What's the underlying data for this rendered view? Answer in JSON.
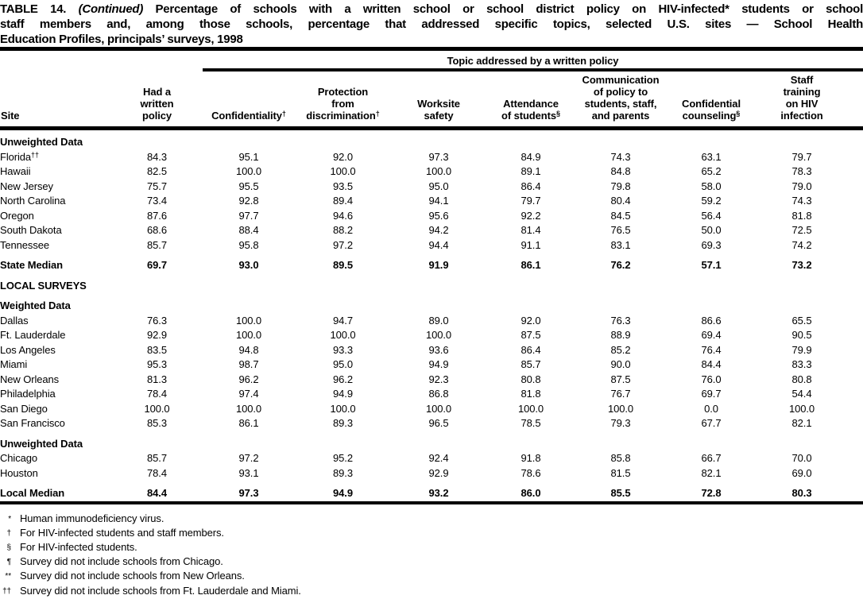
{
  "title": {
    "prefix": "TABLE 14.",
    "continued": "(Continued)",
    "line1_rest": "Percentage of schools with a written school or school district policy on HIV-infected* students or school",
    "line2": "staff members and, among those schools, percentage that addressed specific topics, selected U.S. sites — School Health",
    "line3": "Education Profiles, principals’ surveys, 1998"
  },
  "table": {
    "span_header": "Topic addressed by a written policy",
    "columns": [
      {
        "id": "site",
        "lines": [
          "Site"
        ]
      },
      {
        "id": "had-written-policy",
        "lines": [
          "Had a",
          "written",
          "policy"
        ]
      },
      {
        "id": "confidentiality",
        "lines": [
          "Confidentiality"
        ],
        "sup": "†"
      },
      {
        "id": "protection-from-discrimination",
        "lines": [
          "Protection",
          "from",
          "discrimination"
        ],
        "sup": "†"
      },
      {
        "id": "worksite-safety",
        "lines": [
          "Worksite",
          "safety"
        ]
      },
      {
        "id": "attendance-of-students",
        "lines": [
          "Attendance",
          "of students"
        ],
        "sup": "§"
      },
      {
        "id": "communication-of-policy",
        "lines": [
          "Communication",
          "of policy to",
          "students, staff,",
          "and parents"
        ]
      },
      {
        "id": "confidential-counseling",
        "lines": [
          "Confidential",
          "counseling"
        ],
        "sup": "§"
      },
      {
        "id": "staff-training-on-hiv",
        "lines": [
          "Staff",
          "training",
          "on HIV",
          "infection"
        ]
      }
    ],
    "rows": [
      {
        "type": "subhead",
        "label": "Unweighted Data",
        "first": true
      },
      {
        "type": "data",
        "site": "Florida",
        "sup": "††",
        "values": [
          "84.3",
          "95.1",
          "92.0",
          "97.3",
          "84.9",
          "74.3",
          "63.1",
          "79.7"
        ]
      },
      {
        "type": "data",
        "site": "Hawaii",
        "values": [
          "82.5",
          "100.0",
          "100.0",
          "100.0",
          "89.1",
          "84.8",
          "65.2",
          "78.3"
        ]
      },
      {
        "type": "data",
        "site": "New Jersey",
        "values": [
          "75.7",
          "95.5",
          "93.5",
          "95.0",
          "86.4",
          "79.8",
          "58.0",
          "79.0"
        ]
      },
      {
        "type": "data",
        "site": "North Carolina",
        "values": [
          "73.4",
          "92.8",
          "89.4",
          "94.1",
          "79.7",
          "80.4",
          "59.2",
          "74.3"
        ]
      },
      {
        "type": "data",
        "site": "Oregon",
        "values": [
          "87.6",
          "97.7",
          "94.6",
          "95.6",
          "92.2",
          "84.5",
          "56.4",
          "81.8"
        ]
      },
      {
        "type": "data",
        "site": "South Dakota",
        "values": [
          "68.6",
          "88.4",
          "88.2",
          "94.2",
          "81.4",
          "76.5",
          "50.0",
          "72.5"
        ]
      },
      {
        "type": "data",
        "site": "Tennessee",
        "values": [
          "85.7",
          "95.8",
          "97.2",
          "94.4",
          "91.1",
          "83.1",
          "69.3",
          "74.2"
        ]
      },
      {
        "type": "median",
        "site": "State Median",
        "gap": true,
        "values": [
          "69.7",
          "93.0",
          "89.5",
          "91.9",
          "86.1",
          "76.2",
          "57.1",
          "73.2"
        ]
      },
      {
        "type": "subhead",
        "label": "LOCAL SURVEYS",
        "gap": true
      },
      {
        "type": "subhead",
        "label": "Weighted Data",
        "gap": true
      },
      {
        "type": "data",
        "site": "Dallas",
        "values": [
          "76.3",
          "100.0",
          "94.7",
          "89.0",
          "92.0",
          "76.3",
          "86.6",
          "65.5"
        ]
      },
      {
        "type": "data",
        "site": "Ft. Lauderdale",
        "values": [
          "92.9",
          "100.0",
          "100.0",
          "100.0",
          "87.5",
          "88.9",
          "69.4",
          "90.5"
        ]
      },
      {
        "type": "data",
        "site": "Los Angeles",
        "values": [
          "83.5",
          "94.8",
          "93.3",
          "93.6",
          "86.4",
          "85.2",
          "76.4",
          "79.9"
        ]
      },
      {
        "type": "data",
        "site": "Miami",
        "values": [
          "95.3",
          "98.7",
          "95.0",
          "94.9",
          "85.7",
          "90.0",
          "84.4",
          "83.3"
        ]
      },
      {
        "type": "data",
        "site": "New Orleans",
        "values": [
          "81.3",
          "96.2",
          "96.2",
          "92.3",
          "80.8",
          "87.5",
          "76.0",
          "80.8"
        ]
      },
      {
        "type": "data",
        "site": "Philadelphia",
        "values": [
          "78.4",
          "97.4",
          "94.9",
          "86.8",
          "81.8",
          "76.7",
          "69.7",
          "54.4"
        ]
      },
      {
        "type": "data",
        "site": "San Diego",
        "values": [
          "100.0",
          "100.0",
          "100.0",
          "100.0",
          "100.0",
          "100.0",
          "0.0",
          "100.0"
        ]
      },
      {
        "type": "data",
        "site": "San Francisco",
        "values": [
          "85.3",
          "86.1",
          "89.3",
          "96.5",
          "78.5",
          "79.3",
          "67.7",
          "82.1"
        ]
      },
      {
        "type": "subhead",
        "label": "Unweighted Data",
        "gap": true
      },
      {
        "type": "data",
        "site": "Chicago",
        "values": [
          "85.7",
          "97.2",
          "95.2",
          "92.4",
          "91.8",
          "85.8",
          "66.7",
          "70.0"
        ]
      },
      {
        "type": "data",
        "site": "Houston",
        "values": [
          "78.4",
          "93.1",
          "89.3",
          "92.9",
          "78.6",
          "81.5",
          "82.1",
          "69.0"
        ]
      },
      {
        "type": "median",
        "site": "Local Median",
        "gap": true,
        "values": [
          "84.4",
          "97.3",
          "94.9",
          "93.2",
          "86.0",
          "85.5",
          "72.8",
          "80.3"
        ]
      }
    ]
  },
  "footnotes": [
    {
      "sym": "*",
      "text": "Human immunodeficiency virus."
    },
    {
      "sym": "†",
      "text": "For HIV-infected students and staff members."
    },
    {
      "sym": "§",
      "text": "For HIV-infected students."
    },
    {
      "sym": "¶",
      "text": "Survey did not include schools from Chicago."
    },
    {
      "sym": "**",
      "text": "Survey did not include schools from New Orleans."
    },
    {
      "sym": "††",
      "text": "Survey did not include schools from Ft. Lauderdale and Miami."
    }
  ]
}
